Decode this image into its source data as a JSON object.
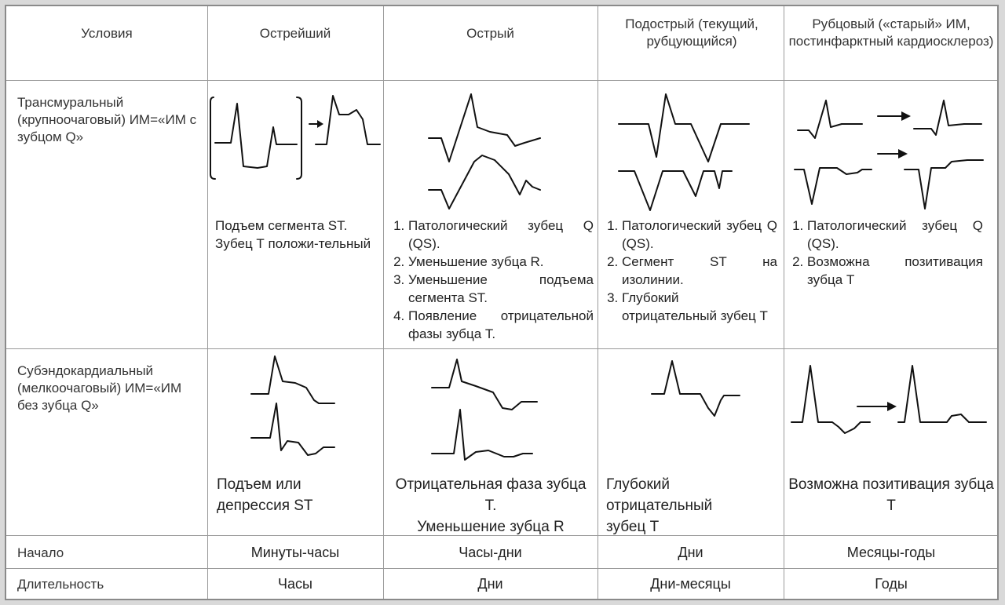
{
  "header": {
    "conditions": "Условия",
    "hyperacute": "Острейший",
    "acute": "Острый",
    "subacute": "Подострый (текущий, рубцующийся)",
    "scar": "Рубцовый («старый» ИМ, постинфарктный кардиосклероз)"
  },
  "rows": {
    "transmural": {
      "label": "Трансмуральный (крупноочаговый) ИМ=«ИМ с зубцом Q»",
      "hyperacute": [
        "Подъем сегмента ST.",
        "Зубец Т положи-тельный"
      ],
      "acute": [
        "Патологический зубец Q (QS).",
        "Уменьшение зубца R.",
        "Уменьшение подъема сегмента ST.",
        "Появление отрицательной фазы зубца Т."
      ],
      "subacute": [
        "Патологический зубец Q (QS).",
        "Сегмент ST на изолинии.",
        "Глубокий отрицательный зубец Т"
      ],
      "scar": [
        "Патологический зубец Q (QS).",
        "Возможна позитивация зубца Т"
      ]
    },
    "subendocardial": {
      "label": "Субэндокардиальный (мелкоочаговый) ИМ=«ИМ без зубца Q»",
      "hyperacute": "Подъем или депрессия ST",
      "acute": [
        "Отрицательная фаза зубца Т.",
        "Уменьшение зубца R"
      ],
      "subacute": "Глубокий отрицательный зубец Т",
      "scar": "Возможна позитивация зубца Т"
    },
    "onset": {
      "label": "Начало",
      "hyperacute": "Минуты-часы",
      "acute": "Часы-дни",
      "subacute": "Дни",
      "scar": "Месяцы-годы"
    },
    "duration": {
      "label": "Длительность",
      "hyperacute": "Часы",
      "acute": "Дни",
      "subacute": "Дни-месяцы",
      "scar": "Годы"
    }
  }
}
